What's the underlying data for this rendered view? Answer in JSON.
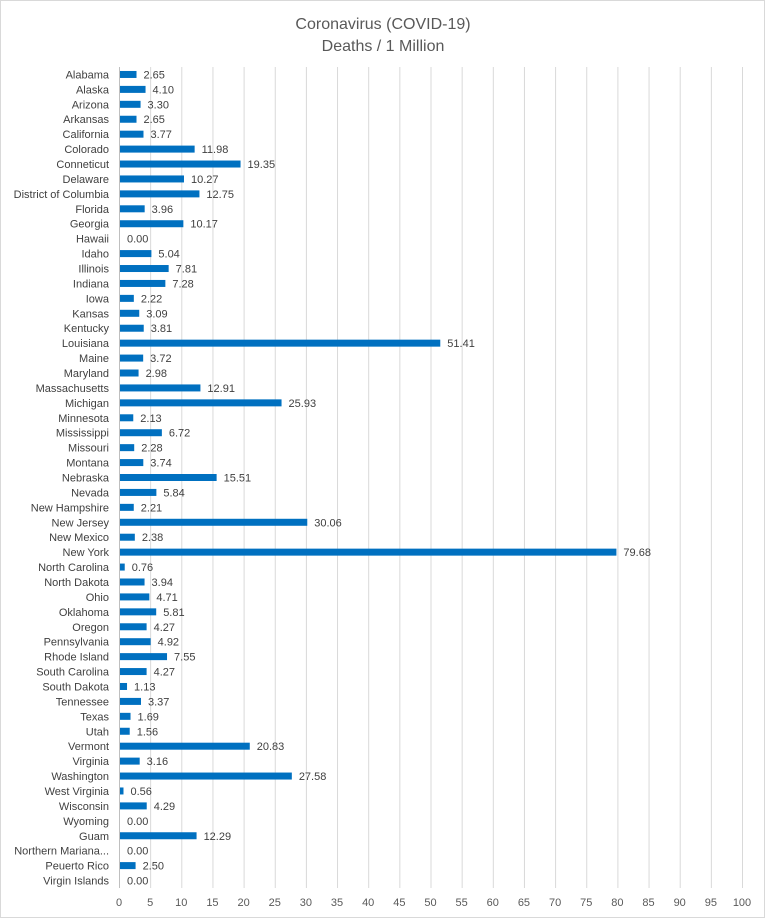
{
  "chart_data": {
    "type": "bar",
    "orientation": "horizontal",
    "title": [
      "Coronavirus (COVID-19)",
      "Deaths / 1 Million"
    ],
    "xlim": [
      0,
      100
    ],
    "x_ticks": [
      0,
      5,
      10,
      15,
      20,
      25,
      30,
      35,
      40,
      45,
      50,
      55,
      60,
      65,
      70,
      75,
      80,
      85,
      90,
      95,
      100
    ],
    "grid": true,
    "bar_color": "#0070c0",
    "categories": [
      "Alabama",
      "Alaska",
      "Arizona",
      "Arkansas",
      "California",
      "Colorado",
      "Conneticut",
      "Delaware",
      "District of Columbia",
      "Florida",
      "Georgia",
      "Hawaii",
      "Idaho",
      "Illinois",
      "Indiana",
      "Iowa",
      "Kansas",
      "Kentucky",
      "Louisiana",
      "Maine",
      "Maryland",
      "Massachusetts",
      "Michigan",
      "Minnesota",
      "Mississippi",
      "Missouri",
      "Montana",
      "Nebraska",
      "Nevada",
      "New Hampshire",
      "New Jersey",
      "New Mexico",
      "New York",
      "North Carolina",
      "North Dakota",
      "Ohio",
      "Oklahoma",
      "Oregon",
      "Pennsylvania",
      "Rhode Island",
      "South Carolina",
      "South Dakota",
      "Tennessee",
      "Texas",
      "Utah",
      "Vermont",
      "Virginia",
      "Washington",
      "West Virginia",
      "Wisconsin",
      "Wyoming",
      "Guam",
      "Northern Mariana...",
      "Peuerto Rico",
      "Virgin Islands"
    ],
    "values": [
      2.65,
      4.1,
      3.3,
      2.65,
      3.77,
      11.98,
      19.35,
      10.27,
      12.75,
      3.96,
      10.17,
      0.0,
      5.04,
      7.81,
      7.28,
      2.22,
      3.09,
      3.81,
      51.41,
      3.72,
      2.98,
      12.91,
      25.93,
      2.13,
      6.72,
      2.28,
      3.74,
      15.51,
      5.84,
      2.21,
      30.06,
      2.38,
      79.68,
      0.76,
      3.94,
      4.71,
      5.81,
      4.27,
      4.92,
      7.55,
      4.27,
      1.13,
      3.37,
      1.69,
      1.56,
      20.83,
      3.16,
      27.58,
      0.56,
      4.29,
      0.0,
      12.29,
      0.0,
      2.5,
      0.0
    ]
  }
}
